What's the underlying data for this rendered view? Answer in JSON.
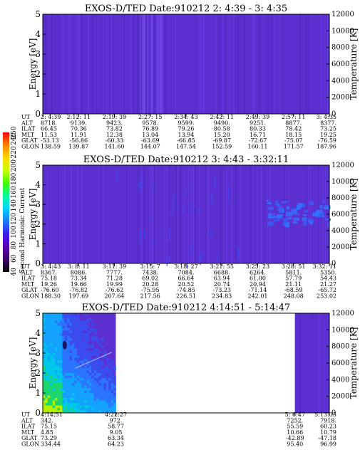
{
  "chart_data": [
    {
      "type": "heatmap",
      "title": "EXOS-D/TED  Date:910212  2: 4:39 - 3: 4:35",
      "ylabel": "Energy [eV]",
      "ylabel_right": "Temperature [K]",
      "ylim": [
        0,
        5
      ],
      "ylim_right": [
        0,
        12000
      ],
      "yticks": [
        "0",
        "1",
        "2",
        "3",
        "4",
        "5"
      ],
      "yticks_right": [
        "0",
        "2000",
        "4000",
        "6000",
        "8000",
        "10000",
        "12000"
      ],
      "data_range": [
        0.0,
        1.0
      ],
      "coverage": [
        {
          "start": 0.0,
          "end": 1.0,
          "style": "uniform-low"
        }
      ],
      "ephemeris": {
        "labels": [
          "UT",
          "ALT",
          "ILAT",
          "MLT",
          "GLAT",
          "GLON"
        ],
        "columns": [
          [
            "2: 4:39",
            "8718.",
            "66.45",
            "11.53",
            "-53.13",
            "138.59"
          ],
          [
            "2:12: 11",
            "9139.",
            "70.36",
            "11.91",
            "-56.86",
            "139.87"
          ],
          [
            "2:19: 39",
            "9423.",
            "73.82",
            "12.38",
            "-60.33",
            "141.60"
          ],
          [
            "2:27: 15",
            "9578.",
            "76.89",
            "13.04",
            "-63.69",
            "144.07"
          ],
          [
            "2:34: 43",
            "9599.",
            "79.26",
            "13.94",
            "-66.85",
            "147.54"
          ],
          [
            "2:42: 11",
            "9490.",
            "80.58",
            "15.20",
            "-69.87",
            "152.59"
          ],
          [
            "2:49: 39",
            "9251.",
            "80.33",
            "16.71",
            "-72.67",
            "160.11"
          ],
          [
            "2:57: 11",
            "8877.",
            "78.42",
            "18.15",
            "-75.07",
            "171.57"
          ],
          [
            "3: 4:35",
            "8377.",
            "73.25",
            "19.25",
            "-76.59",
            "187.96"
          ]
        ]
      }
    },
    {
      "type": "heatmap",
      "title": "EXOS-D/TED  Date:910212  3: 4:43 - 3:32:11",
      "ylabel": "Energy [eV]",
      "ylabel_right": "Temperature [K]",
      "ylim": [
        0,
        5
      ],
      "ylim_right": [
        0,
        12000
      ],
      "yticks": [
        "0",
        "1",
        "2",
        "3",
        "4",
        "5"
      ],
      "yticks_right": [
        "0",
        "2000",
        "4000",
        "6000",
        "8000",
        "10000",
        "12000"
      ],
      "data_range": [
        0.0,
        1.0
      ],
      "coverage": [
        {
          "start": 0.0,
          "end": 1.0,
          "style": "uniform-low"
        }
      ],
      "ephemeris": {
        "labels": [
          "UT",
          "ALT",
          "ILAT",
          "MLT",
          "GLAT",
          "GLON"
        ],
        "columns": [
          [
            "3: 4:43",
            "8367.",
            "75.18",
            "19.26",
            "-76.60",
            "188.30"
          ],
          [
            "3: 8: 11",
            "8086.",
            "73.34",
            "19.66",
            "-76.82",
            "197.69"
          ],
          [
            "3:11: 39",
            "7777.",
            "71.28",
            "19.99",
            "-76.62",
            "207.64"
          ],
          [
            "3:15: 7",
            "7438.",
            "69.02",
            "20.28",
            "-75.95",
            "217.56"
          ],
          [
            "3:18: 27",
            "7084.",
            "66.64",
            "20.52",
            "-74.85",
            "226.51"
          ],
          [
            "3:21: 55",
            "6688.",
            "63.94",
            "20.74",
            "-73.23",
            "234.83"
          ],
          [
            "3:25: 23",
            "6264.",
            "61.00",
            "20.94",
            "-71.14",
            "242.01"
          ],
          [
            "3:28: 51",
            "5811.",
            "57.79",
            "21.11",
            "-68.59",
            "248.08"
          ],
          [
            "3:32: 11",
            "5350.",
            "54.43",
            "21.27",
            "-65.72",
            "253.02"
          ]
        ]
      }
    },
    {
      "type": "heatmap",
      "title": "EXOS-D/TED  Date:910212  4:14:51 - 5:14:47",
      "ylabel": "Energy [eV]",
      "ylabel_right": "Temperature [K]",
      "ylim": [
        0,
        5
      ],
      "ylim_right": [
        0,
        12000
      ],
      "yticks": [
        "0",
        "1",
        "2",
        "3",
        "4",
        "5"
      ],
      "yticks_right": [
        "0",
        "2000",
        "4000",
        "6000",
        "8000",
        "10000",
        "12000"
      ],
      "data_range": [
        0.0,
        1.0
      ],
      "coverage": [
        {
          "start": 0.0,
          "end": 0.255,
          "style": "low-energy-enhanced"
        },
        {
          "start": 0.88,
          "end": 1.0,
          "style": "uniform-low"
        }
      ],
      "ephemeris": {
        "labels": [
          "UT",
          "ALT",
          "ILAT",
          "MLT",
          "GLAT",
          "GLON"
        ],
        "columns": [
          [
            "4:14:51",
            "342.",
            "75.15",
            "4.85",
            "73.29",
            "334.44"
          ],
          [
            "4:22:27",
            "972.",
            "58.77",
            "9.05",
            "63.34",
            "64.23"
          ],
          [
            "5: 6:47",
            "7252.",
            "55.59",
            "10.66",
            "-42.89",
            "95.40"
          ],
          [
            "5:13:35",
            "7918.",
            "60.23",
            "10.79",
            "-47.18",
            "96.99"
          ]
        ],
        "column_positions": [
          0.0,
          0.255,
          0.88,
          1.0
        ]
      }
    }
  ],
  "colorbar": {
    "label": "Second Harmonic Current",
    "ticks": [
      "40",
      "60",
      "80",
      "100",
      "120",
      "140",
      "160",
      "180",
      "200",
      "220",
      "240",
      "250"
    ],
    "range": [
      40,
      250
    ],
    "stops": [
      "#000000",
      "#3b0066",
      "#5a00b4",
      "#3a1ef2",
      "#1a7cff",
      "#00d4ff",
      "#00ff9a",
      "#40ff00",
      "#c8ff00",
      "#ffd800",
      "#ff8200",
      "#ff0000"
    ]
  }
}
